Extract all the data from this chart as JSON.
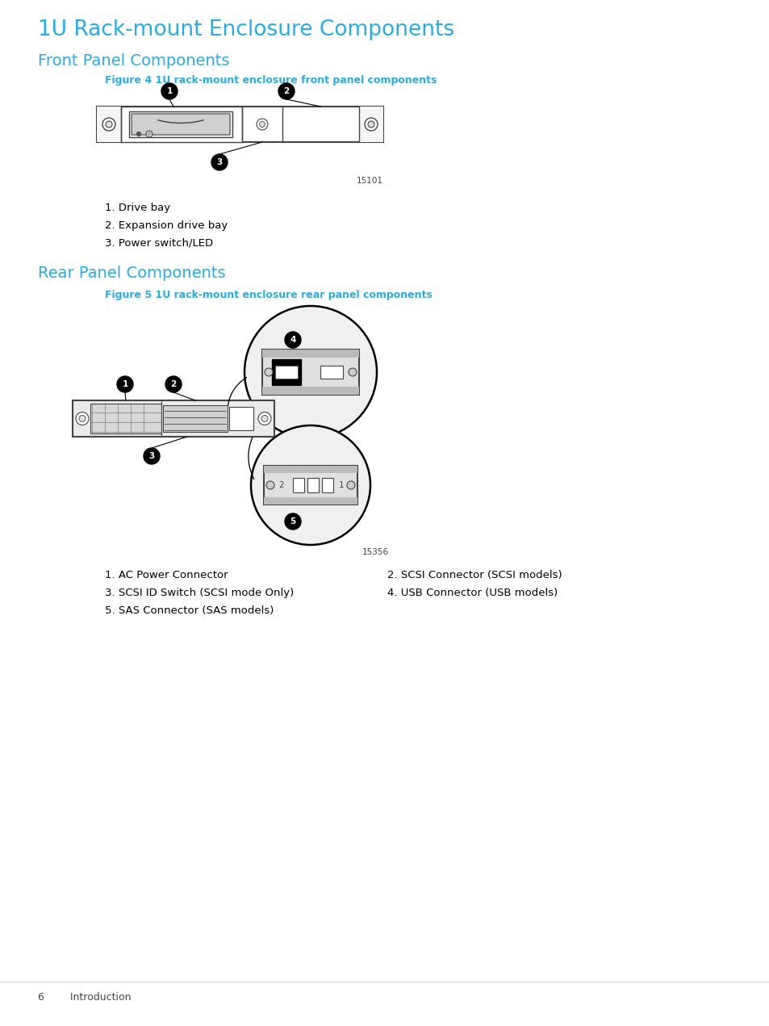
{
  "title_main": "1U Rack-mount Enclosure Components",
  "title_front": "Front Panel Components",
  "title_rear": "Rear Panel Components",
  "fig4_caption": "Figure 4 1U rack-mount enclosure front panel components",
  "fig5_caption": "Figure 5 1U rack-mount enclosure rear panel components",
  "fig4_id": "15101",
  "fig5_id": "15356",
  "front_labels": [
    "1. Drive bay",
    "2. Expansion drive bay",
    "3. Power switch/LED"
  ],
  "rear_labels_col1": [
    "1. AC Power Connector",
    "3. SCSI ID Switch (SCSI mode Only)",
    "5. SAS Connector (SAS models)"
  ],
  "rear_labels_col2": [
    "2. SCSI Connector (SCSI models)",
    "4. USB Connector (USB models)"
  ],
  "cyan": "#29ABE2",
  "black": "#000000",
  "white": "#FFFFFF",
  "light_gray": "#CCCCCC",
  "mid_gray": "#888888",
  "dark_gray": "#444444",
  "very_light_gray": "#F2F2F2",
  "bg": "#FFFFFF",
  "footer_text": "6        Introduction",
  "body_font_size": 9.5,
  "title_main_size": 19,
  "title_sub_size": 14,
  "caption_size": 9,
  "fig_id_size": 7.5
}
